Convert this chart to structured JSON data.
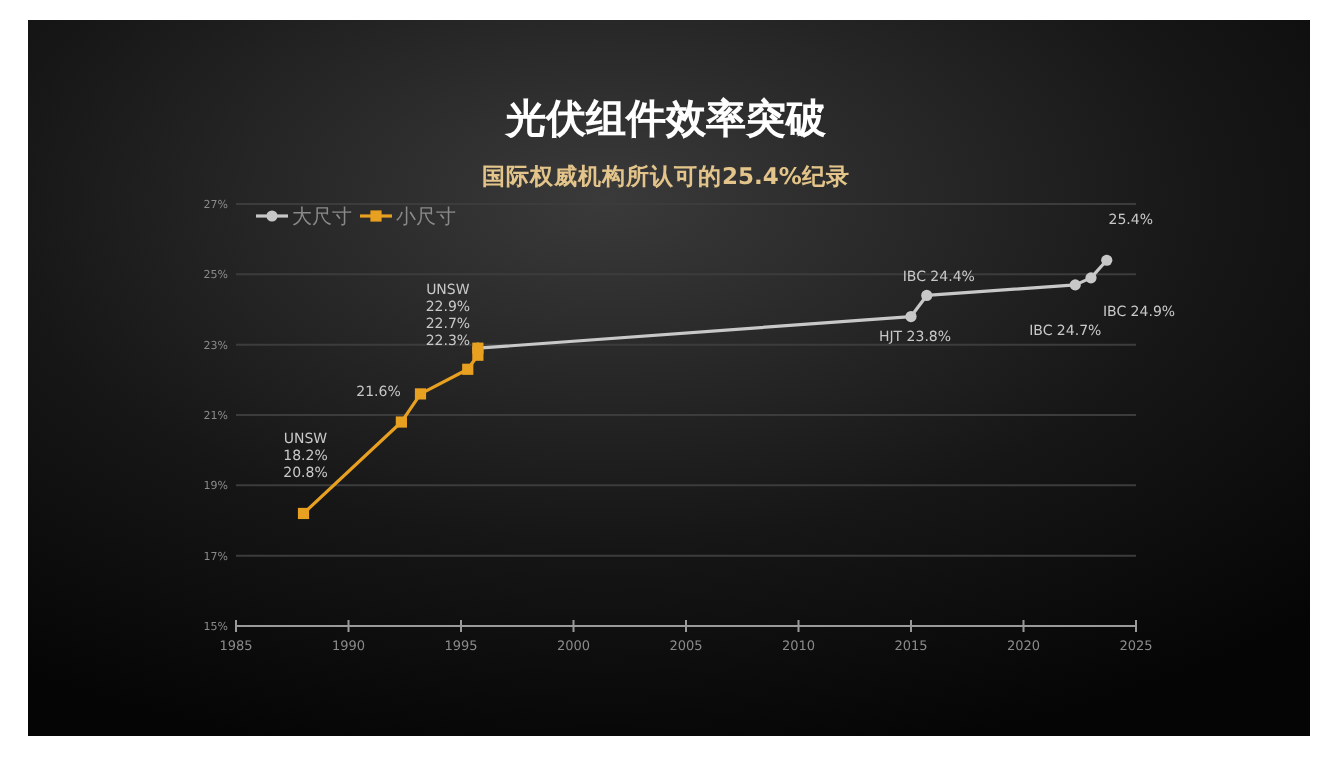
{
  "chart_data": {
    "type": "line",
    "title": "光伏组件效率突破",
    "subtitle": "国际权威机构所认可的25.4%纪录",
    "series": [
      {
        "name": "大尺寸",
        "color": "#c8c8c8",
        "marker": "circle",
        "x": [
          1995.75,
          2015.0,
          2015.7,
          2022.3,
          2023.0,
          2023.7
        ],
        "values": [
          22.9,
          23.8,
          24.4,
          24.7,
          24.9,
          25.4
        ]
      },
      {
        "name": "小尺寸",
        "color": "#e8a020",
        "marker": "square",
        "x": [
          1988.0,
          1992.35,
          1993.2,
          1995.3,
          1995.75,
          1995.75
        ],
        "values": [
          18.2,
          20.8,
          21.6,
          22.3,
          22.7,
          22.9
        ]
      }
    ],
    "xlim": [
      1985,
      2025
    ],
    "xticks": [
      1985,
      1990,
      1995,
      2000,
      2005,
      2010,
      2015,
      2020,
      2025
    ],
    "ylim": [
      15,
      27
    ],
    "yticks": [
      {
        "value": 15,
        "label": "15%"
      },
      {
        "value": 17,
        "label": "17%"
      },
      {
        "value": 19,
        "label": "19%"
      },
      {
        "value": 21,
        "label": "21%"
      },
      {
        "value": 23,
        "label": "23%"
      },
      {
        "value": 25,
        "label": "25%"
      },
      {
        "value": 27,
        "label": "27%"
      }
    ],
    "grid": "y",
    "legend": "top left",
    "line_style": "solid",
    "annotations": [
      {
        "text": "UNSW\n18.2%\n20.8%",
        "x": 1988.0,
        "y": 18.2
      },
      {
        "text": "21.6%",
        "x": 1993.2,
        "y": 21.6
      },
      {
        "text": "UNSW\n22.9%\n22.7%\n22.3%",
        "x": 1995.75,
        "y": 22.9
      },
      {
        "text": "HJT 23.8%",
        "x": 2015.0,
        "y": 23.8
      },
      {
        "text": "IBC 24.4%",
        "x": 2015.7,
        "y": 24.4
      },
      {
        "text": "IBC 24.7%",
        "x": 2022.3,
        "y": 24.7
      },
      {
        "text": "IBC  24.9%",
        "x": 2023.0,
        "y": 24.9
      },
      {
        "text": "25.4%",
        "x": 2023.7,
        "y": 25.4
      }
    ]
  }
}
